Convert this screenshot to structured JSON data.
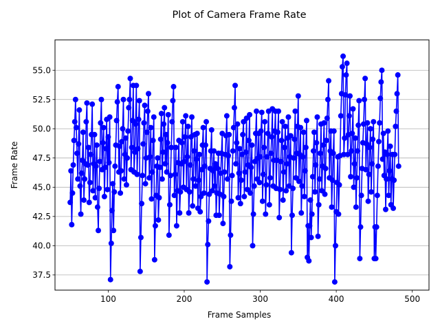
{
  "chart_data": {
    "type": "line",
    "title": "Plot of Camera Frame Rate",
    "xlabel": "Frame Samples",
    "ylabel": "Frame Rate",
    "xlim": [
      30,
      522
    ],
    "ylim": [
      36.2,
      57.6
    ],
    "xticks": [
      100,
      200,
      300,
      400,
      500
    ],
    "yticks": [
      37.5,
      40.0,
      42.5,
      45.0,
      47.5,
      50.0,
      52.5,
      55.0
    ],
    "grid": "horizontal",
    "line_color": "#0000ff",
    "marker": "circle",
    "series": [
      {
        "x_start": 50,
        "x_step": 1,
        "values": [
          43.7,
          46.4,
          41.8,
          44.5,
          46.9,
          49.0,
          50.6,
          52.5,
          50.1,
          47.9,
          45.7,
          48.7,
          51.6,
          45.1,
          42.7,
          46.2,
          47.3,
          49.7,
          43.9,
          45.7,
          47.0,
          50.6,
          52.2,
          46.9,
          48.4,
          43.7,
          45.4,
          47.8,
          49.5,
          52.1,
          44.7,
          47.0,
          49.5,
          44.1,
          46.8,
          48.6,
          43.3,
          41.3,
          44.9,
          47.2,
          50.5,
          52.5,
          46.5,
          48.8,
          50.1,
          44.2,
          46.7,
          48.3,
          50.8,
          44.8,
          49.3,
          47.1,
          51.0,
          37.1,
          40.2,
          43.0,
          45.3,
          41.3,
          44.6,
          46.8,
          48.6,
          50.7,
          52.3,
          53.6,
          46.3,
          48.5,
          44.5,
          46.4,
          48.9,
          50.0,
          52.5,
          45.7,
          47.8,
          49.2,
          45.2,
          47.5,
          49.8,
          51.8,
          52.5,
          54.3,
          46.5,
          48.4,
          50.7,
          53.7,
          46.3,
          48.0,
          50.4,
          53.7,
          46.1,
          48.3,
          50.8,
          52.4,
          37.8,
          40.7,
          43.6,
          46.0,
          48.7,
          50.5,
          52.0,
          45.3,
          47.5,
          49.7,
          51.5,
          53.0,
          45.8,
          47.6,
          50.1,
          44.0,
          46.3,
          49.0,
          51.0,
          38.8,
          41.7,
          44.3,
          46.8,
          47.5,
          42.2,
          44.1,
          46.7,
          49.1,
          51.3,
          45.7,
          48.0,
          50.4,
          51.8,
          47.0,
          49.5,
          46.3,
          48.8,
          51.2,
          40.9,
          43.5,
          46.0,
          48.4,
          50.6,
          52.4,
          53.6,
          44.3,
          46.1,
          48.4,
          41.7,
          44.7,
          47.1,
          49.0,
          42.8,
          44.6,
          47.0,
          48.8,
          50.6,
          45.0,
          47.2,
          49.3,
          51.1,
          44.8,
          47.6,
          50.2,
          42.8,
          44.6,
          46.9,
          49.3,
          51.0,
          43.4,
          45.7,
          48.1,
          49.5,
          45.1,
          47.4,
          49.6,
          43.2,
          45.6,
          47.8,
          42.9,
          44.2,
          46.5,
          48.6,
          50.1,
          44.5,
          46.8,
          48.6,
          50.6,
          36.9,
          40.1,
          42.1,
          44.4,
          46.6,
          48.1,
          49.9,
          44.7,
          46.4,
          48.1,
          45.1,
          47.0,
          42.6,
          44.5,
          46.6,
          47.9,
          42.6,
          44.4,
          46.2,
          47.9,
          49.6,
          41.9,
          44.2,
          46.3,
          47.8,
          49.4,
          51.1,
          45.7,
          47.7,
          49.5,
          38.2,
          40.9,
          43.8,
          46.0,
          48.1,
          50.1,
          51.8,
          53.7,
          47.0,
          48.8,
          50.4,
          44.1,
          46.2,
          48.3,
          43.6,
          45.6,
          47.8,
          49.5,
          50.6,
          44.2,
          46.3,
          48.0,
          50.9,
          44.8,
          46.9,
          49.0,
          51.2,
          44.5,
          46.7,
          48.6,
          40.0,
          42.7,
          45.1,
          47.2,
          49.6,
          51.5,
          45.7,
          47.5,
          49.6,
          45.4,
          47.6,
          49.8,
          51.4,
          43.8,
          46.1,
          48.4,
          50.6,
          42.7,
          45.2,
          47.6,
          49.6,
          51.5,
          43.5,
          45.8,
          47.9,
          49.3,
          51.7,
          45.1,
          47.3,
          49.8,
          51.5,
          44.9,
          47.3,
          49.7,
          51.5,
          42.4,
          44.8,
          47.2,
          49.0,
          50.6,
          43.9,
          46.3,
          48.4,
          50.2,
          44.7,
          47.0,
          49.2,
          51.0,
          45.1,
          47.6,
          49.4,
          39.4,
          42.6,
          44.9,
          47.5,
          49.1,
          51.5,
          45.8,
          47.9,
          50.2,
          52.8,
          45.5,
          47.8,
          50.1,
          42.8,
          45.1,
          47.6,
          49.7,
          44.2,
          46.4,
          48.4,
          50.7,
          39.0,
          41.7,
          38.7,
          41.7,
          43.9,
          40.7,
          42.7,
          45.9,
          48.1,
          49.7,
          44.6,
          46.9,
          48.8,
          51.0,
          40.8,
          43.5,
          45.7,
          47.9,
          50.4,
          44.7,
          46.8,
          48.6,
          50.5,
          44.4,
          46.6,
          49.0,
          50.9,
          52.5,
          54.1,
          45.8,
          48.1,
          49.8,
          43.3,
          45.6,
          47.9,
          49.8,
          36.9,
          40.0,
          42.9,
          45.4,
          47.6,
          42.7,
          45.2,
          47.7,
          51.1,
          53.0,
          55.3,
          56.2,
          47.8,
          49.2,
          52.9,
          54.6,
          55.6,
          47.8,
          49.5,
          51.1,
          52.8,
          45.9,
          48.1,
          49.6,
          51.7,
          45.0,
          47.0,
          49.2,
          43.3,
          45.8,
          48.1,
          50.3,
          52.4,
          38.9,
          41.6,
          44.3,
          46.6,
          48.8,
          50.4,
          52.5,
          54.3,
          46.5,
          48.7,
          50.5,
          43.8,
          46.1,
          48.4,
          50.0,
          44.6,
          47.0,
          49.1,
          50.6,
          38.9,
          41.6,
          38.9,
          41.6,
          44.3,
          46.8,
          48.9,
          50.5,
          52.6,
          54.0,
          55.0,
          47.4,
          49.6,
          46.0,
          48.0,
          43.1,
          45.7,
          47.8,
          49.8,
          44.3,
          46.4,
          48.5,
          43.5,
          45.7,
          47.8,
          43.2,
          45.6,
          47.8,
          50.2,
          51.5,
          53.0,
          54.6,
          46.8
        ]
      }
    ]
  }
}
